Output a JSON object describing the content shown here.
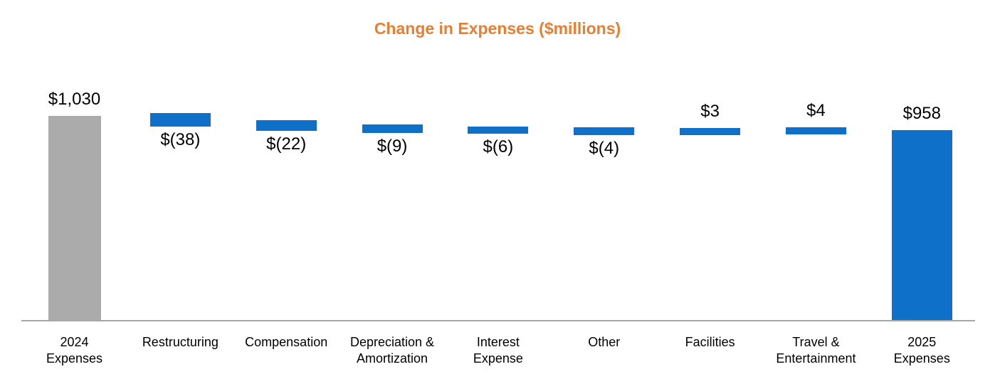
{
  "chart_data": {
    "type": "bar",
    "subtype": "waterfall",
    "title": "Change in Expenses ($millions)",
    "unit": "$millions",
    "start_total": 1030,
    "end_total": 958,
    "ylim": [
      0,
      1030
    ],
    "grid": false,
    "legend": null,
    "items": [
      {
        "category_lines": [
          "2024",
          "Expenses"
        ],
        "role": "total",
        "value": 1030,
        "value_label": "$1,030",
        "label_position": "above"
      },
      {
        "category_lines": [
          "Restructuring"
        ],
        "role": "delta",
        "value": -38,
        "value_label": "$(38)",
        "label_position": "below"
      },
      {
        "category_lines": [
          "Compensation"
        ],
        "role": "delta",
        "value": -22,
        "value_label": "$(22)",
        "label_position": "below"
      },
      {
        "category_lines": [
          "Depreciation &",
          "Amortization"
        ],
        "role": "delta",
        "value": -9,
        "value_label": "$(9)",
        "label_position": "below"
      },
      {
        "category_lines": [
          "Interest",
          "Expense"
        ],
        "role": "delta",
        "value": -6,
        "value_label": "$(6)",
        "label_position": "below"
      },
      {
        "category_lines": [
          "Other"
        ],
        "role": "delta",
        "value": -4,
        "value_label": "$(4)",
        "label_position": "below"
      },
      {
        "category_lines": [
          "Facilities"
        ],
        "role": "delta",
        "value": 3,
        "value_label": "$3",
        "label_position": "above"
      },
      {
        "category_lines": [
          "Travel &",
          "Entertainment"
        ],
        "role": "delta",
        "value": 4,
        "value_label": "$4",
        "label_position": "above"
      },
      {
        "category_lines": [
          "2025",
          "Expenses"
        ],
        "role": "total",
        "value": 958,
        "value_label": "$958",
        "label_position": "above"
      }
    ],
    "colors": {
      "start_bar": "#ABABAB",
      "delta_bar": "#0E70C8",
      "end_bar": "#0E70C8",
      "title": "#E87E2F",
      "axis": "#A6A6A6",
      "text": "#000000"
    }
  }
}
